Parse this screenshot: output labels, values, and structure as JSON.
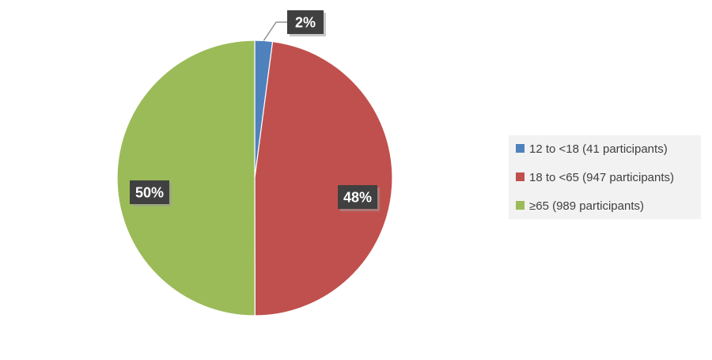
{
  "chart_data": {
    "type": "pie",
    "title": "",
    "slices": [
      {
        "label": "12 to <18 (41 participants)",
        "value": 41,
        "percent_label": "2%",
        "color": "#4f81bd"
      },
      {
        "label": "18 to <65 (947 participants)",
        "value": 947,
        "percent_label": "48%",
        "color": "#c0504d"
      },
      {
        "label": "≥65 (989 participants)",
        "value": 989,
        "percent_label": "50%",
        "color": "#9bbb59"
      }
    ],
    "start_angle_deg": 0,
    "direction": "clockwise",
    "legend": {
      "position": "right",
      "background": "#f2f2f2"
    },
    "data_label_style": {
      "background": "#404040",
      "text_color": "#ffffff"
    }
  }
}
